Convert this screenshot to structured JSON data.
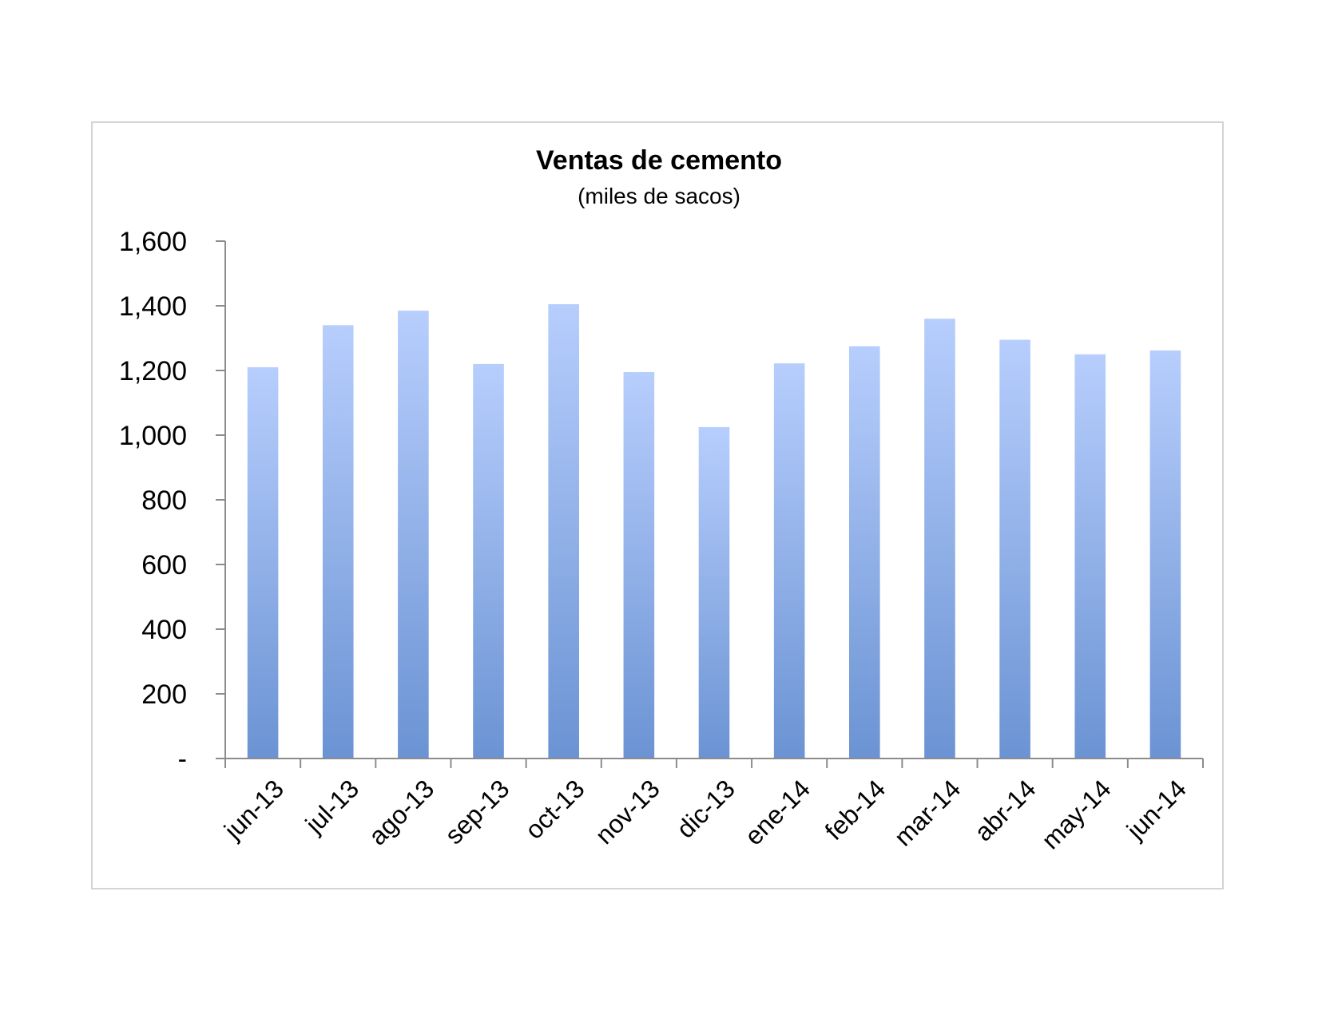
{
  "chart_data": {
    "type": "bar",
    "title": "Ventas de cemento",
    "subtitle": "(miles de sacos)",
    "xlabel": "",
    "ylabel": "",
    "categories": [
      "jun-13",
      "jul-13",
      "ago-13",
      "sep-13",
      "oct-13",
      "nov-13",
      "dic-13",
      "ene-14",
      "feb-14",
      "mar-14",
      "abr-14",
      "may-14",
      "jun-14"
    ],
    "values": [
      1210,
      1340,
      1385,
      1220,
      1405,
      1195,
      1025,
      1222,
      1275,
      1360,
      1295,
      1250,
      1262
    ],
    "ylim": [
      0,
      1600
    ],
    "y_ticks": [
      0,
      200,
      400,
      600,
      800,
      1000,
      1200,
      1400,
      1600
    ],
    "y_tick_labels": [
      "-",
      "200",
      "400",
      "600",
      "800",
      "1,000",
      "1,200",
      "1,400",
      "1,600"
    ],
    "grid": false,
    "legend": "none",
    "bar_color_top": "#b7cefd",
    "bar_color_bottom": "#6b93d3"
  }
}
